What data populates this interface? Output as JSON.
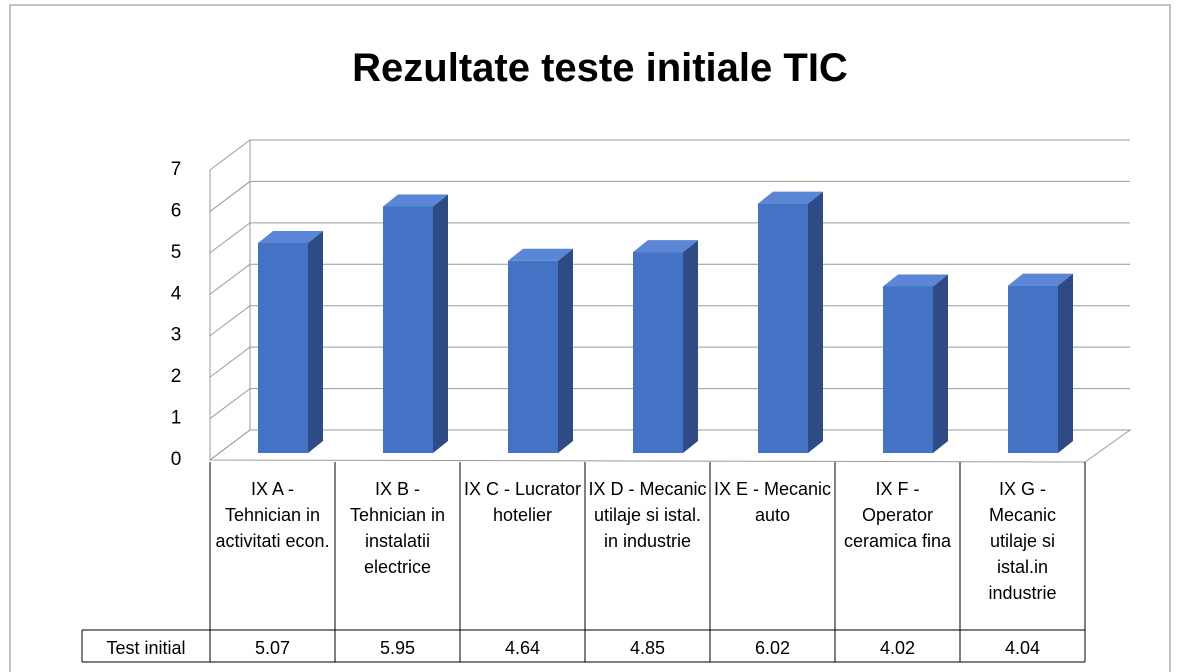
{
  "chart_data": {
    "type": "bar",
    "title": "Rezultate teste initiale TIC",
    "categories": [
      "IX A - Tehnician in activitati econ.",
      "IX B - Tehnician in instalatii electrice",
      "IX C - Lucrator hotelier",
      "IX D - Mecanic utilaje si istal. in industrie",
      "IX E - Mecanic auto",
      "IX F - Operator ceramica fina",
      "IX G - Mecanic utilaje si istal.in industrie"
    ],
    "series": [
      {
        "name": "Test initial",
        "color": "#4472c4",
        "values": [
          5.07,
          5.95,
          4.64,
          4.85,
          6.02,
          4.02,
          4.04
        ]
      }
    ],
    "ylim": [
      0,
      7
    ],
    "yticks": [
      0,
      1,
      2,
      3,
      4,
      5,
      6,
      7
    ],
    "grid": true
  }
}
